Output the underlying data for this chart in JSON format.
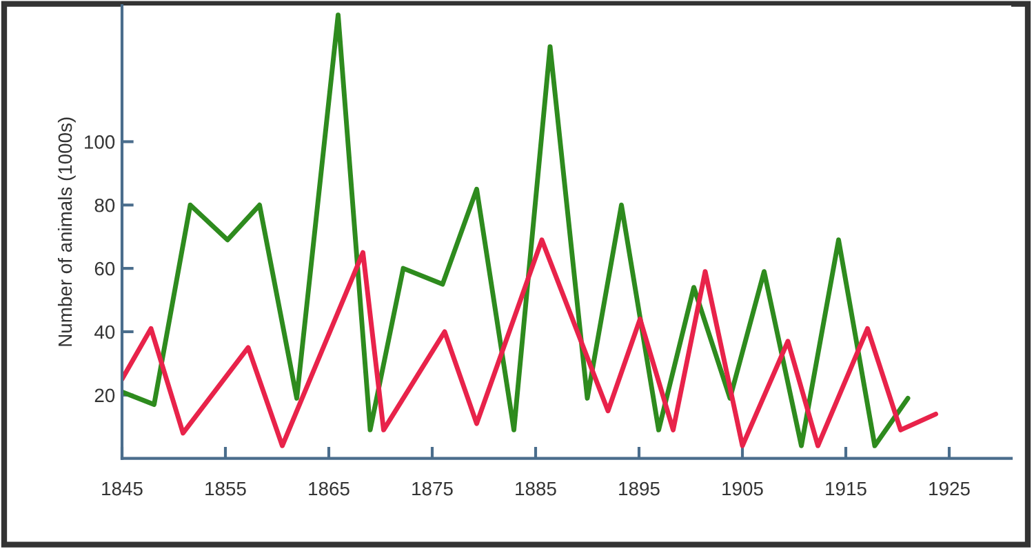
{
  "chart_data": {
    "type": "line",
    "ylabel": "Number of animals (1000s)",
    "xlim": [
      1845,
      1931
    ],
    "xticks": [
      1845,
      1855,
      1865,
      1875,
      1885,
      1895,
      1905,
      1915,
      1925
    ],
    "ylim": [
      0,
      143
    ],
    "yticks": [
      20,
      40,
      60,
      80,
      100
    ],
    "grid": false,
    "legend": false,
    "marker": "none",
    "line_style": "solid",
    "series": [
      {
        "color": "#2e8b1e",
        "x": [
          1845,
          1848.1,
          1851.6,
          1855.2,
          1858.3,
          1861.9,
          1865.9,
          1869,
          1872.2,
          1876,
          1879.3,
          1882.9,
          1886.4,
          1890,
          1893.3,
          1896.9,
          1900.3,
          1903.8,
          1907.1,
          1910.7,
          1914.3,
          1917.8,
          1921
        ],
        "values": [
          21,
          17,
          80,
          69,
          80,
          19,
          140,
          9,
          60,
          55,
          85,
          9,
          130,
          19,
          80,
          9,
          54,
          19,
          59,
          4,
          69,
          4,
          19
        ]
      },
      {
        "color": "#e8234a",
        "x": [
          1845,
          1847.8,
          1850.9,
          1857.2,
          1860.5,
          1868.3,
          1870.3,
          1876.2,
          1879.3,
          1885.6,
          1892,
          1895.1,
          1898.3,
          1901.4,
          1905,
          1909.4,
          1912.3,
          1917.1,
          1920.3,
          1923.7
        ],
        "values": [
          25,
          41,
          8,
          35,
          4,
          65,
          9,
          40,
          11,
          69,
          15,
          44,
          9,
          59,
          4,
          37,
          4,
          41,
          9,
          14
        ]
      }
    ]
  }
}
